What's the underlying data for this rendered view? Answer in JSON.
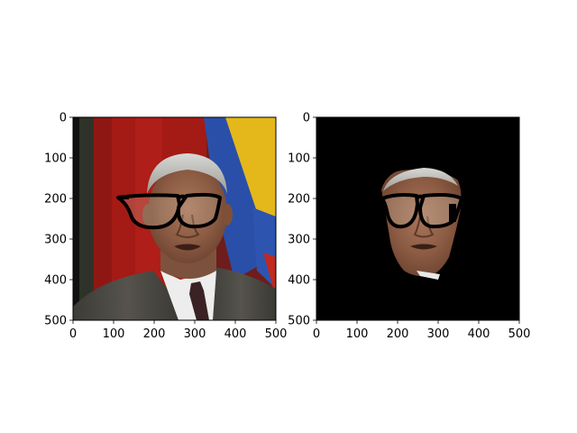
{
  "figure": {
    "background": "#ffffff"
  },
  "chart_data": [
    {
      "type": "image",
      "image": "original photo: man in suit and tie with drawn black eyeglasses, flags behind",
      "xlim": [
        0,
        500
      ],
      "ylim": [
        500,
        0
      ],
      "xticks": [
        0,
        100,
        200,
        300,
        400,
        500
      ],
      "yticks": [
        0,
        100,
        200,
        300,
        400,
        500
      ],
      "xlabel": "",
      "ylabel": "",
      "title": ""
    },
    {
      "type": "image",
      "image": "segmented face region with drawn eyeglasses on black background",
      "xlim": [
        0,
        500
      ],
      "ylim": [
        500,
        0
      ],
      "xticks": [
        0,
        100,
        200,
        300,
        400,
        500
      ],
      "yticks": [
        0,
        100,
        200,
        300,
        400,
        500
      ],
      "xlabel": "",
      "ylabel": "",
      "title": "",
      "background_color": "#000000"
    }
  ]
}
